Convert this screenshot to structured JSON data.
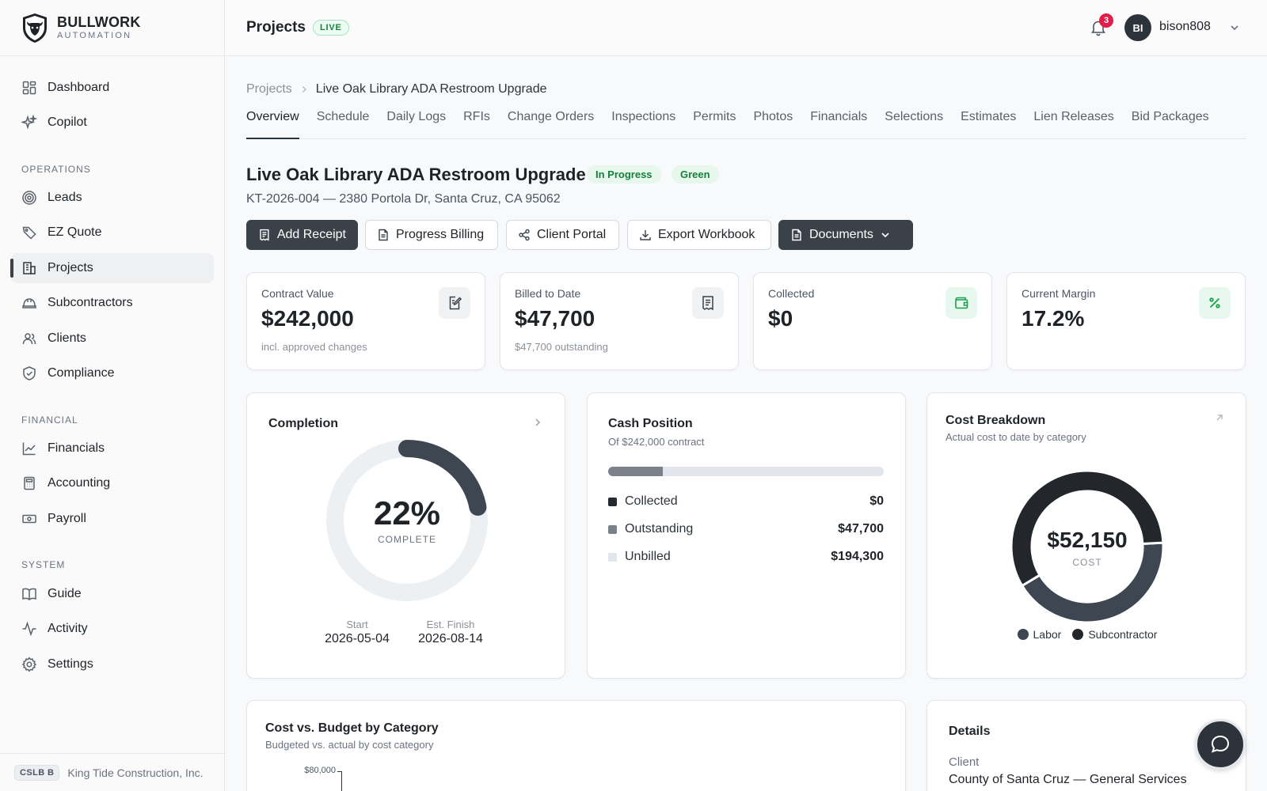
{
  "brand": {
    "name": "BULLWORK",
    "sub": "AUTOMATION"
  },
  "sidebar": {
    "top_items": [
      {
        "label": "Dashboard",
        "icon": "grid-icon"
      },
      {
        "label": "Copilot",
        "icon": "sparkle-icon"
      }
    ],
    "sections": [
      {
        "title": "OPERATIONS",
        "items": [
          {
            "label": "Leads",
            "icon": "target-icon"
          },
          {
            "label": "EZ Quote",
            "icon": "tag-icon"
          },
          {
            "label": "Projects",
            "icon": "building-icon",
            "active": true
          },
          {
            "label": "Subcontractors",
            "icon": "hardhat-icon"
          },
          {
            "label": "Clients",
            "icon": "users-icon"
          },
          {
            "label": "Compliance",
            "icon": "shield-check-icon"
          }
        ]
      },
      {
        "title": "FINANCIAL",
        "items": [
          {
            "label": "Financials",
            "icon": "line-chart-icon"
          },
          {
            "label": "Accounting",
            "icon": "calculator-icon"
          },
          {
            "label": "Payroll",
            "icon": "banknote-icon"
          }
        ]
      },
      {
        "title": "SYSTEM",
        "items": [
          {
            "label": "Guide",
            "icon": "book-icon"
          },
          {
            "label": "Activity",
            "icon": "activity-icon"
          },
          {
            "label": "Settings",
            "icon": "gear-icon"
          }
        ]
      }
    ],
    "footer": {
      "badge": "CSLB B",
      "company": "King Tide Construction, Inc."
    }
  },
  "topbar": {
    "title": "Projects",
    "live": "LIVE",
    "notifications": "3",
    "avatar_initials": "BI",
    "username": "bison808"
  },
  "breadcrumb": {
    "root": "Projects",
    "current": "Live Oak Library ADA Restroom Upgrade"
  },
  "tabs": [
    "Overview",
    "Schedule",
    "Daily Logs",
    "RFIs",
    "Change Orders",
    "Inspections",
    "Permits",
    "Photos",
    "Financials",
    "Selections",
    "Estimates",
    "Lien Releases",
    "Bid Packages"
  ],
  "project": {
    "title": "Live Oak Library ADA Restroom Upgrade",
    "status": "In Progress",
    "health": "Green",
    "subtitle": "KT-2026-004 — 2380 Portola Dr, Santa Cruz, CA 95062"
  },
  "actions": {
    "add_receipt": "Add Receipt",
    "progress_billing": "Progress Billing",
    "client_portal": "Client Portal",
    "export_workbook": "Export Workbook",
    "documents": "Documents"
  },
  "stats": [
    {
      "label": "Contract Value",
      "value": "$242,000",
      "note": "incl. approved changes",
      "icon": "file-edit-icon"
    },
    {
      "label": "Billed to Date",
      "value": "$47,700",
      "note": "$47,700 outstanding",
      "icon": "receipt-icon"
    },
    {
      "label": "Collected",
      "value": "$0",
      "note": "",
      "icon": "wallet-icon"
    },
    {
      "label": "Current Margin",
      "value": "17.2%",
      "note": "",
      "icon": "percent-icon"
    }
  ],
  "completion": {
    "title": "Completion",
    "percent_label": "22%",
    "percent": 22,
    "caption": "COMPLETE",
    "start_label": "Start",
    "start": "2026-05-04",
    "finish_label": "Est. Finish",
    "finish": "2026-08-14"
  },
  "cash": {
    "title": "Cash Position",
    "subtitle": "Of $242,000 contract",
    "contract_total": 242000,
    "rows": [
      {
        "label": "Collected",
        "amount": "$0",
        "value": 0,
        "color": "#24292f"
      },
      {
        "label": "Outstanding",
        "amount": "$47,700",
        "value": 47700,
        "color": "#6b7280"
      },
      {
        "label": "Unbilled",
        "amount": "$194,300",
        "value": 194300,
        "color": "#e2e6ec"
      }
    ]
  },
  "cost_breakdown": {
    "title": "Cost Breakdown",
    "subtitle": "Actual cost to date by category",
    "total": "$52,150",
    "caption": "COST"
  },
  "chart_data": {
    "type": "pie",
    "categories": [
      "Labor",
      "Subcontractor"
    ],
    "values": [
      22000,
      30150
    ],
    "colors": [
      "#3d4651",
      "#23272c"
    ],
    "legend": "bottom"
  },
  "cost_vs_budget": {
    "title": "Cost vs. Budget by Category",
    "subtitle": "Budgeted vs. actual by cost category",
    "y_tick_top": "$80,000"
  },
  "details": {
    "title": "Details",
    "client_label": "Client",
    "client_value": "County of Santa Cruz — General Services"
  }
}
